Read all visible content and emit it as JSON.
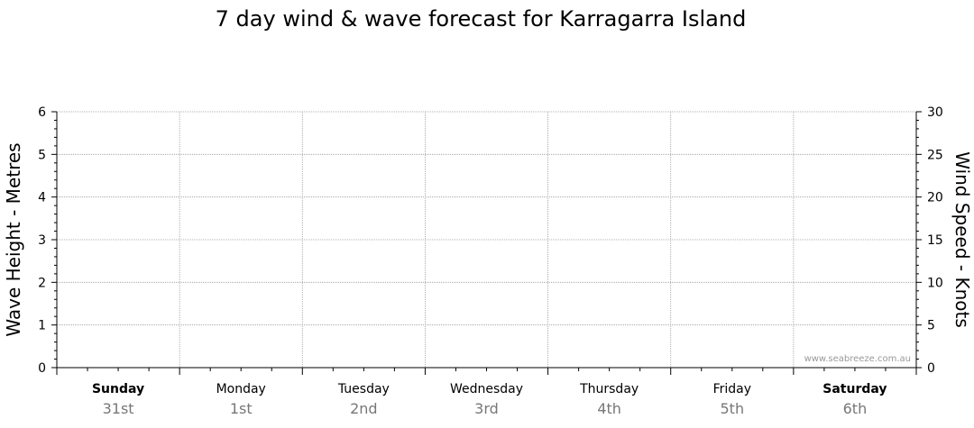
{
  "chart_data": {
    "type": "line",
    "title": "7 day wind & wave forecast for Karragarra Island",
    "ylabel_left": "Wave Height - Metres",
    "ylabel_right": "Wind Speed - Knots",
    "ylim_left": [
      0,
      6
    ],
    "ylim_right": [
      0,
      30
    ],
    "yticks_left": [
      0,
      1,
      2,
      3,
      4,
      5,
      6
    ],
    "yticks_right": [
      0,
      5,
      10,
      15,
      20,
      25,
      30
    ],
    "grid": true,
    "watermark": "www.seabreeze.com.au",
    "days": [
      {
        "name": "Sunday",
        "date": "31st",
        "bold": true
      },
      {
        "name": "Monday",
        "date": "1st",
        "bold": false
      },
      {
        "name": "Tuesday",
        "date": "2nd",
        "bold": false
      },
      {
        "name": "Wednesday",
        "date": "3rd",
        "bold": false
      },
      {
        "name": "Thursday",
        "date": "4th",
        "bold": false
      },
      {
        "name": "Friday",
        "date": "5th",
        "bold": false
      },
      {
        "name": "Saturday",
        "date": "6th",
        "bold": true
      }
    ],
    "series": []
  },
  "colors": {
    "axis": "#000000",
    "grid": "#999999",
    "date_text": "#777777",
    "watermark": "#999999"
  }
}
